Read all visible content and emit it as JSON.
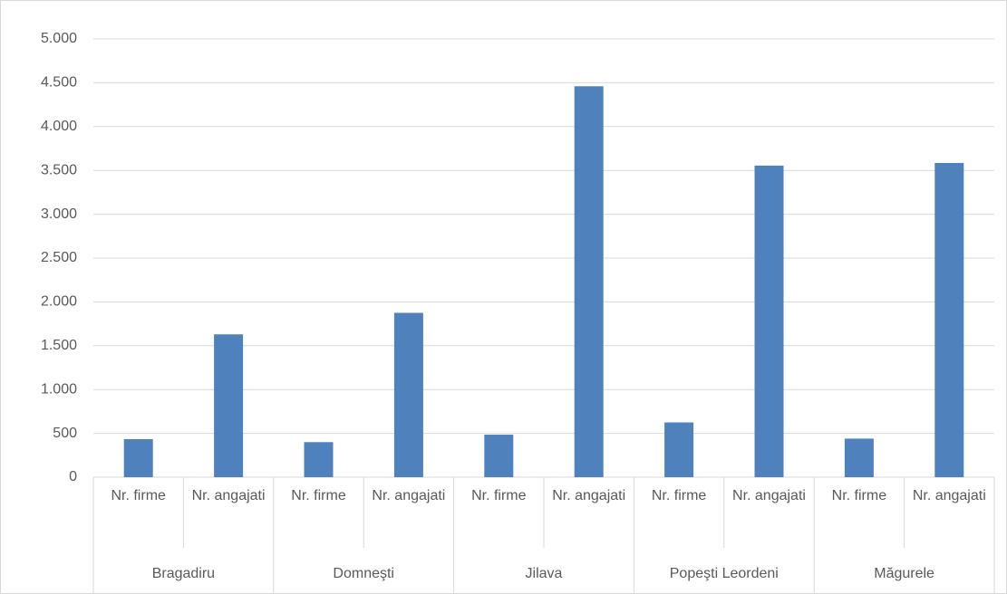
{
  "chart_data": {
    "type": "bar",
    "color": "#4f81bd",
    "grid": true,
    "ylim": [
      0,
      5000
    ],
    "yticks": [
      0,
      500,
      {
        "value": 1000,
        "label": "1.000"
      },
      {
        "value": 1500,
        "label": "1.500"
      },
      {
        "value": 2000,
        "label": "2.000"
      },
      {
        "value": 2500,
        "label": "2.500"
      },
      {
        "value": 3000,
        "label": "3.000"
      },
      {
        "value": 3500,
        "label": "3.500"
      },
      {
        "value": 4000,
        "label": "4.000"
      },
      {
        "value": 4500,
        "label": "4.500"
      },
      {
        "value": 5000,
        "label": "5.000"
      }
    ],
    "groups": [
      {
        "name": "Bragadiru",
        "categories": [
          "Nr. firme",
          "Nr. angajati"
        ],
        "values": [
          434,
          1630
        ]
      },
      {
        "name": "Domneşti",
        "categories": [
          "Nr. firme",
          "Nr. angajati"
        ],
        "values": [
          400,
          1875
        ]
      },
      {
        "name": "Jilava",
        "categories": [
          "Nr. firme",
          "Nr. angajati"
        ],
        "values": [
          485,
          4460
        ]
      },
      {
        "name": "Popeşti Leordeni",
        "categories": [
          "Nr. firme",
          "Nr. angajati"
        ],
        "values": [
          625,
          3555
        ]
      },
      {
        "name": "Măgurele",
        "categories": [
          "Nr. firme",
          "Nr. angajati"
        ],
        "values": [
          440,
          3585
        ]
      }
    ]
  }
}
